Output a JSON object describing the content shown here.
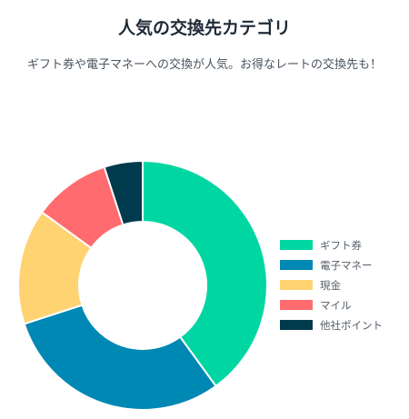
{
  "header": {
    "title": "人気の交換先カテゴリ",
    "subtitle": "ギフト券や電子マネーへの交換が人気。お得なレートの交換先も！"
  },
  "chart_data": {
    "type": "pie",
    "variant": "doughnut",
    "legend_position": "right",
    "categories": [
      "ギフト券",
      "電子マネー",
      "現金",
      "マイル",
      "他社ポイント"
    ],
    "values": [
      40,
      30,
      15,
      10,
      5
    ],
    "colors": [
      "#00d6a2",
      "#0088b4",
      "#ffd272",
      "#ff6b6e",
      "#003a4d"
    ]
  }
}
